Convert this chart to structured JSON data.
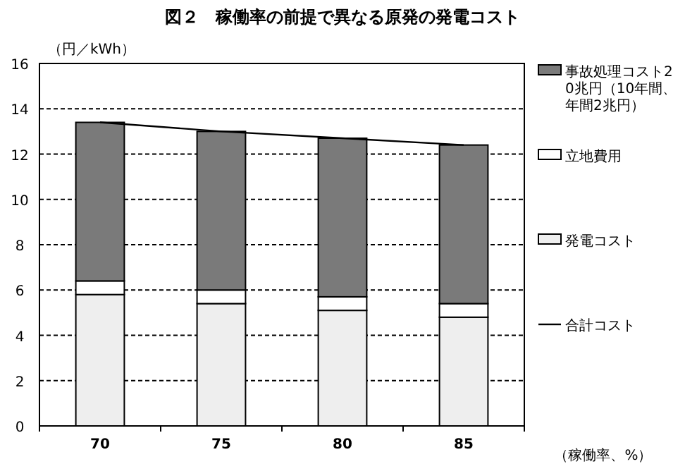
{
  "chart_data": {
    "type": "bar",
    "title": "図２　稼働率の前提で異なる原発の発電コスト",
    "ylabel": "（円／kWh）",
    "xlabel": "（稼働率、%）",
    "categories": [
      "70",
      "75",
      "80",
      "85"
    ],
    "stacked": true,
    "ylim": [
      0,
      16
    ],
    "yticks": [
      0,
      2,
      4,
      6,
      8,
      10,
      12,
      14,
      16
    ],
    "grid": "y",
    "legend": "right",
    "series": [
      {
        "name": "発電コスト",
        "color": "#eeeeee",
        "values": [
          5.8,
          5.4,
          5.1,
          4.8
        ]
      },
      {
        "name": "立地費用",
        "color": "#ffffff",
        "values": [
          0.6,
          0.6,
          0.6,
          0.6
        ]
      },
      {
        "name": "事故処理コスト20兆円（10年間、年間2兆円）",
        "color": "#7a7a7a",
        "values": [
          7.0,
          7.0,
          7.0,
          7.0
        ]
      },
      {
        "name": "合計コスト",
        "type": "line",
        "color": "#000000",
        "values": [
          13.4,
          13.0,
          12.7,
          12.4
        ]
      }
    ]
  }
}
